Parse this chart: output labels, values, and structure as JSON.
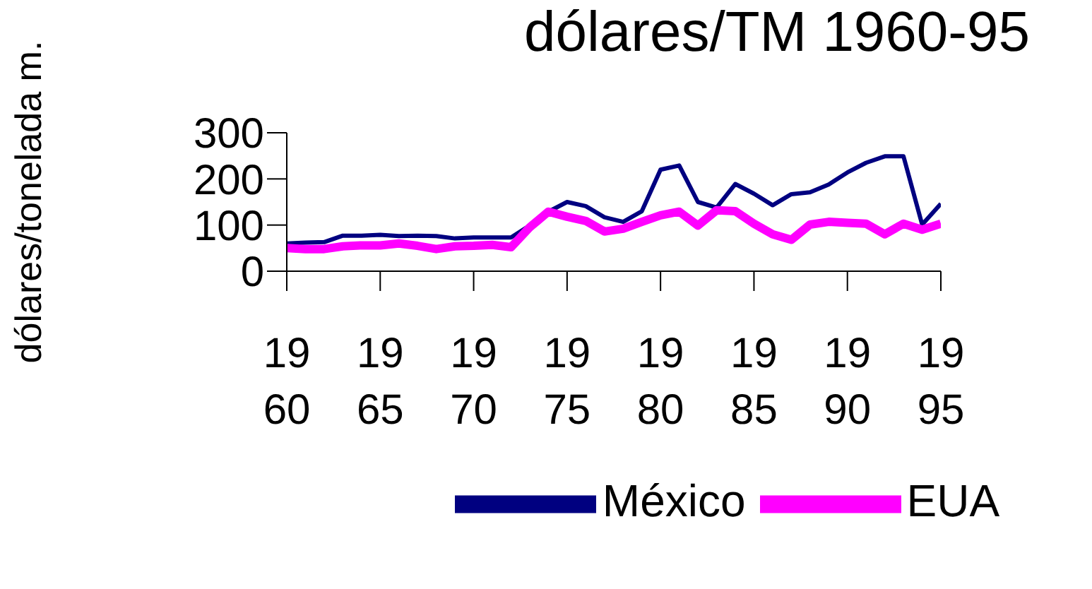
{
  "chart_data": {
    "type": "line",
    "title": "dólares/TM 1960-95",
    "ylabel": "dólares/tonelada m.",
    "x": [
      1960,
      1961,
      1962,
      1963,
      1964,
      1965,
      1966,
      1967,
      1968,
      1969,
      1970,
      1971,
      1972,
      1973,
      1974,
      1975,
      1976,
      1977,
      1978,
      1979,
      1980,
      1981,
      1982,
      1983,
      1984,
      1985,
      1986,
      1987,
      1988,
      1989,
      1990,
      1991,
      1992,
      1993,
      1994,
      1995
    ],
    "series": [
      {
        "name": "México",
        "color": "#000080",
        "values": [
          60,
          62,
          63,
          77,
          77,
          79,
          76,
          77,
          76,
          71,
          73,
          73,
          73,
          99,
          129,
          150,
          141,
          117,
          107,
          130,
          220,
          229,
          150,
          138,
          189,
          168,
          143,
          167,
          171,
          188,
          214,
          235,
          249,
          249,
          101,
          146
        ]
      },
      {
        "name": "EUA",
        "color": "#ff00ff",
        "values": [
          50,
          48,
          48,
          54,
          56,
          56,
          60,
          55,
          48,
          54,
          55,
          57,
          52,
          95,
          129,
          118,
          109,
          86,
          92,
          107,
          121,
          129,
          99,
          132,
          130,
          103,
          80,
          68,
          101,
          107,
          105,
          103,
          80,
          103,
          90,
          103
        ]
      }
    ],
    "xlim": [
      1960,
      1995
    ],
    "xticks": [
      1960,
      1965,
      1970,
      1975,
      1980,
      1985,
      1990,
      1995
    ],
    "ylim": [
      0,
      300
    ],
    "yticks": [
      0,
      100,
      200,
      300
    ],
    "grid": false,
    "legend": "bottom",
    "marker": "none"
  }
}
